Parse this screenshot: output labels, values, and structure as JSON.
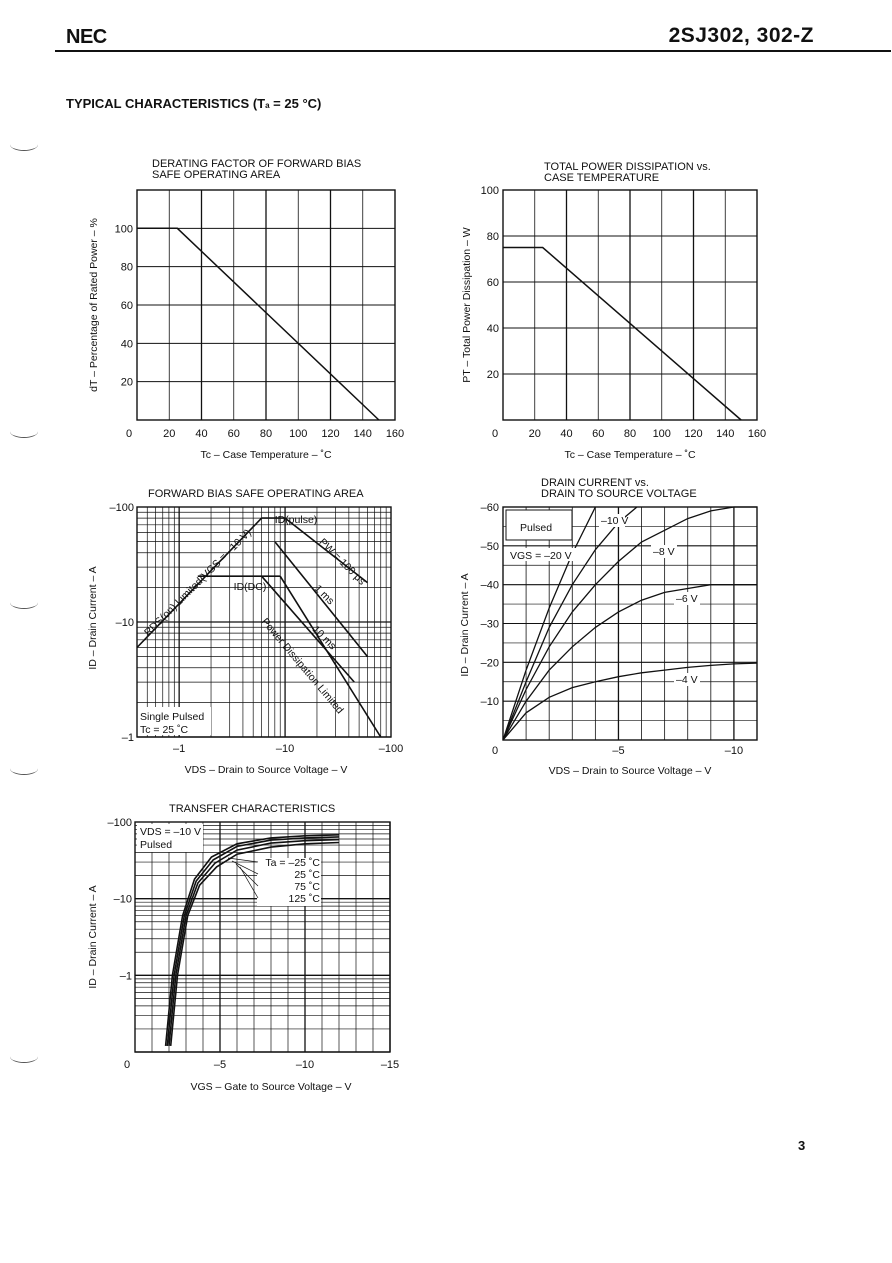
{
  "header": {
    "brand": "NEC",
    "part_number": "2SJ302, 302-Z"
  },
  "section": {
    "title": "TYPICAL CHARACTERISTICS (T",
    "title_sub": "a",
    "title_tail": " = 25 °C)"
  },
  "page_number": "3",
  "chart_data": [
    {
      "id": "derating",
      "type": "line",
      "title": [
        "DERATING FACTOR OF FORWARD BIAS",
        "SAFE OPERATING AREA"
      ],
      "xlabel": "Tc – Case Temperature – ˚C",
      "ylabel": "dT – Percentage of Rated Power – %",
      "xlim": [
        0,
        160
      ],
      "ylim": [
        0,
        120
      ],
      "xticks": [
        "0",
        "20",
        "40",
        "60",
        "80",
        "100",
        "120",
        "140",
        "160"
      ],
      "yticks": [
        "20",
        "40",
        "60",
        "80",
        "100"
      ],
      "series": [
        {
          "x": [
            0,
            25,
            150
          ],
          "y": [
            100,
            100,
            0
          ]
        }
      ]
    },
    {
      "id": "power",
      "type": "line",
      "title": [
        "TOTAL POWER DISSIPATION vs.",
        "CASE TEMPERATURE"
      ],
      "xlabel": "Tc – Case Temperature – ˚C",
      "ylabel": "PT – Total Power Dissipation – W",
      "xlim": [
        0,
        160
      ],
      "ylim": [
        0,
        100
      ],
      "xticks": [
        "0",
        "20",
        "40",
        "60",
        "80",
        "100",
        "120",
        "140",
        "160"
      ],
      "yticks": [
        "20",
        "40",
        "60",
        "80",
        "100"
      ],
      "series": [
        {
          "x": [
            0,
            25,
            150
          ],
          "y": [
            75,
            75,
            0
          ]
        }
      ]
    },
    {
      "id": "soa",
      "type": "line",
      "title": [
        "FORWARD BIAS SAFE OPERATING AREA"
      ],
      "xlabel": "VDS – Drain to Source Voltage – V",
      "ylabel": "ID – Drain Current – A",
      "xscale": "log",
      "yscale": "log",
      "xlim": [
        -0.4,
        -100
      ],
      "ylim": [
        -1,
        -100
      ],
      "xticks": [
        "–1",
        "–10",
        "–100"
      ],
      "yticks": [
        "–1",
        "–10",
        "–100"
      ],
      "annotations": [
        "RDS(on) Limited(VGS = –10 V)",
        "ID(pulse)",
        "ID(DC)",
        "PW = 100 μs",
        "1 ms",
        "10 ms",
        "Power Dissipation Limited",
        "Single Pulsed",
        "Tc = 25 ˚C"
      ],
      "series": [
        {
          "name": "RDS(on) Limited",
          "x": [
            -0.4,
            -6
          ],
          "y": [
            -6,
            -80
          ]
        },
        {
          "name": "ID(pulse)",
          "x": [
            -6,
            -10
          ],
          "y": [
            -80,
            -80
          ]
        },
        {
          "name": "PW = 100 μs",
          "x": [
            -10,
            -60
          ],
          "y": [
            -80,
            -22
          ]
        },
        {
          "name": "1 ms",
          "x": [
            -8,
            -60
          ],
          "y": [
            -50,
            -5
          ]
        },
        {
          "name": "10 ms",
          "x": [
            -6,
            -45
          ],
          "y": [
            -25,
            -3
          ]
        },
        {
          "name": "ID(DC)",
          "x": [
            -1.5,
            -9
          ],
          "y": [
            -25,
            -25
          ]
        },
        {
          "name": "Power Dissipation Limited",
          "x": [
            -9,
            -80
          ],
          "y": [
            -25,
            -1
          ]
        }
      ]
    },
    {
      "id": "drain",
      "type": "line",
      "title": [
        "DRAIN CURRENT vs.",
        "DRAIN TO SOURCE VOLTAGE"
      ],
      "xlabel": "VDS – Drain to Source Voltage – V",
      "ylabel": "ID – Drain Current – A",
      "xlim": [
        0,
        -11
      ],
      "ylim": [
        0,
        -60
      ],
      "xticks": [
        "0",
        "–5",
        "–10"
      ],
      "yticks": [
        "–10",
        "–20",
        "–30",
        "–40",
        "–50",
        "–60"
      ],
      "annotations": [
        "Pulsed",
        "VGS = –20 V"
      ],
      "series": [
        {
          "name": "VGS = –20 V",
          "x": [
            0,
            -1,
            -2,
            -3,
            -4
          ],
          "y": [
            0,
            -18,
            -34,
            -48,
            -60
          ]
        },
        {
          "name": "–10 V",
          "x": [
            0,
            -1,
            -2,
            -3,
            -4,
            -5,
            -5.8
          ],
          "y": [
            0,
            -15,
            -29,
            -40,
            -49,
            -56,
            -60
          ]
        },
        {
          "name": "–8 V",
          "x": [
            0,
            -1,
            -2,
            -3,
            -4,
            -5,
            -6,
            -7,
            -8,
            -9,
            -10,
            -11
          ],
          "y": [
            0,
            -13,
            -24,
            -33,
            -40,
            -46,
            -51,
            -54,
            -57,
            -59,
            -60,
            -60
          ]
        },
        {
          "name": "–6 V",
          "x": [
            0,
            -1,
            -2,
            -3,
            -4,
            -5,
            -6,
            -7,
            -8,
            -9,
            -10,
            -11
          ],
          "y": [
            0,
            -10,
            -18,
            -24,
            -29,
            -33,
            -36,
            -38,
            -39,
            -40,
            -40,
            -40
          ]
        },
        {
          "name": "–4 V",
          "x": [
            0,
            -1,
            -2,
            -3,
            -4,
            -5,
            -6,
            -7,
            -8,
            -9,
            -10,
            -11
          ],
          "y": [
            0,
            -7,
            -11,
            -13.5,
            -15,
            -16.3,
            -17.3,
            -18,
            -18.7,
            -19.2,
            -19.6,
            -19.8
          ]
        }
      ]
    },
    {
      "id": "transfer",
      "type": "line",
      "title": [
        "TRANSFER CHARACTERISTICS"
      ],
      "xlabel": "VGS – Gate to Source Voltage – V",
      "ylabel": "ID – Drain Current – A",
      "yscale": "log",
      "xlim": [
        0,
        -15
      ],
      "ylim": [
        -0.1,
        -100
      ],
      "xticks": [
        "0",
        "–5",
        "–10",
        "–15"
      ],
      "yticks": [
        "–1",
        "–10",
        "–100"
      ],
      "annotations": [
        "VDS = –10 V",
        "Pulsed"
      ],
      "series": [
        {
          "name": "Ta = –25 ˚C",
          "x": [
            -1.8,
            -2.2,
            -2.8,
            -3.5,
            -4.5,
            -6,
            -8,
            -10,
            -12
          ],
          "y": [
            -0.12,
            -1,
            -6,
            -18,
            -35,
            -52,
            -62,
            -66,
            -68
          ]
        },
        {
          "name": "25 ˚C",
          "x": [
            -1.9,
            -2.3,
            -2.9,
            -3.6,
            -4.6,
            -6,
            -8,
            -10,
            -12
          ],
          "y": [
            -0.12,
            -1,
            -6,
            -17,
            -32,
            -48,
            -58,
            -62,
            -64
          ]
        },
        {
          "name": "75 ˚C",
          "x": [
            -2.0,
            -2.4,
            -3.0,
            -3.7,
            -4.7,
            -6,
            -8,
            -10,
            -12
          ],
          "y": [
            -0.12,
            -1,
            -6,
            -16,
            -29,
            -43,
            -53,
            -57,
            -59
          ]
        },
        {
          "name": "125 ˚C",
          "x": [
            -2.1,
            -2.5,
            -3.1,
            -3.8,
            -4.8,
            -6,
            -8,
            -10,
            -12
          ],
          "y": [
            -0.12,
            -1,
            -6,
            -15,
            -26,
            -38,
            -47,
            -52,
            -54
          ]
        }
      ]
    }
  ]
}
